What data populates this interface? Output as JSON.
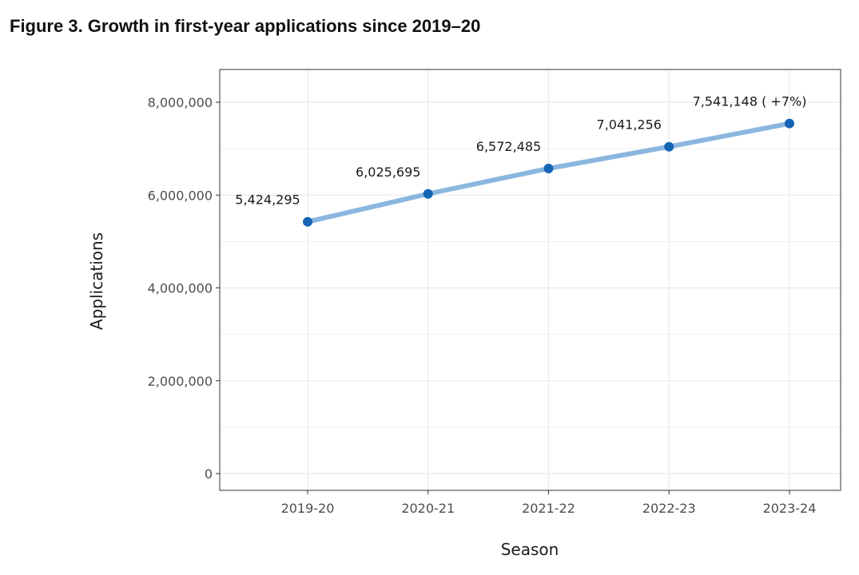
{
  "figure": {
    "title": "Figure 3. Growth in first-year applications since 2019–20"
  },
  "chart_data": {
    "type": "line",
    "title": "",
    "xlabel": "Season",
    "ylabel": "Applications",
    "categories": [
      "2019-20",
      "2020-21",
      "2021-22",
      "2022-23",
      "2023-24"
    ],
    "series": [
      {
        "values": [
          5424295,
          6025695,
          6572485,
          7041256,
          7541148
        ],
        "labels": [
          "5,424,295",
          "6,025,695",
          "6,572,485",
          "7,041,256",
          "7,541,148 ( +7%)"
        ]
      }
    ],
    "ylim": [
      0,
      8000000
    ],
    "yticks": [
      0,
      2000000,
      4000000,
      6000000,
      8000000
    ],
    "ytick_labels": [
      "0",
      "2,000,000",
      "4,000,000",
      "6,000,000",
      "8,000,000"
    ],
    "grid": true,
    "colors": {
      "line": "#8ab6df",
      "point": "#1565b5"
    }
  }
}
